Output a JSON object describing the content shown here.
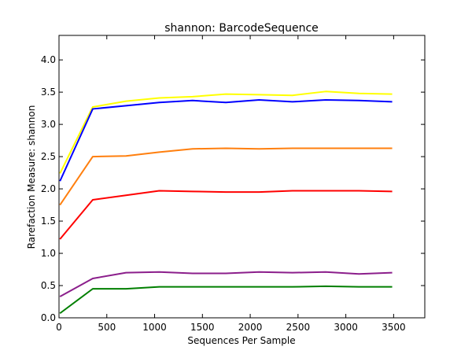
{
  "chart_data": {
    "type": "line",
    "title": "shannon: BarcodeSequence",
    "xlabel": "Sequences Per Sample",
    "ylabel": "Rarefaction Measure: shannon",
    "xlim": [
      0,
      3826
    ],
    "ylim": [
      0.0,
      4.38
    ],
    "xticks": [
      0,
      500,
      1000,
      1500,
      2000,
      2500,
      3000,
      3500
    ],
    "yticks": [
      0.0,
      0.5,
      1.0,
      1.5,
      2.0,
      2.5,
      3.0,
      3.5,
      4.0
    ],
    "xtick_labels": [
      "0",
      "500",
      "1000",
      "1500",
      "2000",
      "2500",
      "3000",
      "3500"
    ],
    "ytick_labels": [
      "0.0",
      "0.5",
      "1.0",
      "1.5",
      "2.0",
      "2.5",
      "3.0",
      "3.5",
      "4.0"
    ],
    "grid": false,
    "x": [
      10,
      353,
      701,
      1049,
      1397,
      1745,
      2093,
      2441,
      2789,
      3137,
      3485
    ],
    "series": [
      {
        "color": "#ffff00",
        "values": [
          2.24,
          3.27,
          3.36,
          3.41,
          3.43,
          3.47,
          3.46,
          3.45,
          3.51,
          3.48,
          3.47
        ]
      },
      {
        "color": "#0000ff",
        "values": [
          2.12,
          3.24,
          3.29,
          3.34,
          3.37,
          3.34,
          3.38,
          3.35,
          3.38,
          3.37,
          3.35
        ]
      },
      {
        "color": "#ff7f0e",
        "values": [
          1.75,
          2.5,
          2.51,
          2.57,
          2.62,
          2.63,
          2.62,
          2.63,
          2.63,
          2.63,
          2.63
        ]
      },
      {
        "color": "#ff0000",
        "values": [
          1.22,
          1.83,
          1.9,
          1.97,
          1.96,
          1.95,
          1.95,
          1.97,
          1.97,
          1.97,
          1.96
        ]
      },
      {
        "color": "#8b1e8b",
        "values": [
          0.33,
          0.61,
          0.7,
          0.71,
          0.69,
          0.69,
          0.71,
          0.7,
          0.71,
          0.68,
          0.7
        ]
      },
      {
        "color": "#007f00",
        "values": [
          0.07,
          0.45,
          0.45,
          0.48,
          0.48,
          0.48,
          0.48,
          0.48,
          0.49,
          0.48,
          0.48
        ]
      }
    ]
  }
}
